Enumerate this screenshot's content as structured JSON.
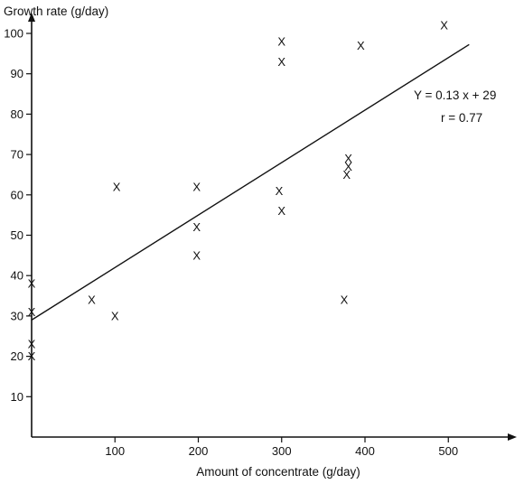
{
  "chart_data": {
    "type": "scatter",
    "title": "",
    "xlabel": "Amount of concentrate (g/day)",
    "ylabel": "Growth rate (g/day)",
    "xlim": [
      0,
      580
    ],
    "ylim": [
      0,
      100
    ],
    "x_ticks": [
      100,
      200,
      300,
      400,
      500
    ],
    "y_ticks": [
      10,
      20,
      30,
      40,
      50,
      60,
      70,
      80,
      90,
      100
    ],
    "grid": false,
    "legend": "none",
    "marker": "X",
    "series": [
      {
        "points": [
          {
            "x": 0,
            "y": 38
          },
          {
            "x": 0,
            "y": 31
          },
          {
            "x": 0,
            "y": 23
          },
          {
            "x": 0,
            "y": 20
          },
          {
            "x": 72,
            "y": 34
          },
          {
            "x": 100,
            "y": 30
          },
          {
            "x": 102,
            "y": 62
          },
          {
            "x": 198,
            "y": 62
          },
          {
            "x": 198,
            "y": 52
          },
          {
            "x": 198,
            "y": 45
          },
          {
            "x": 300,
            "y": 98
          },
          {
            "x": 300,
            "y": 93
          },
          {
            "x": 297,
            "y": 61
          },
          {
            "x": 300,
            "y": 56
          },
          {
            "x": 375,
            "y": 34
          },
          {
            "x": 380,
            "y": 69
          },
          {
            "x": 380,
            "y": 67
          },
          {
            "x": 378,
            "y": 65
          },
          {
            "x": 395,
            "y": 97
          },
          {
            "x": 495,
            "y": 102
          }
        ]
      }
    ],
    "regression": {
      "slope": 0.13,
      "intercept": 29,
      "x_range": [
        0,
        525
      ],
      "equation_label": "Y = 0.13 x + 29",
      "r_label": "r = 0.77"
    }
  }
}
